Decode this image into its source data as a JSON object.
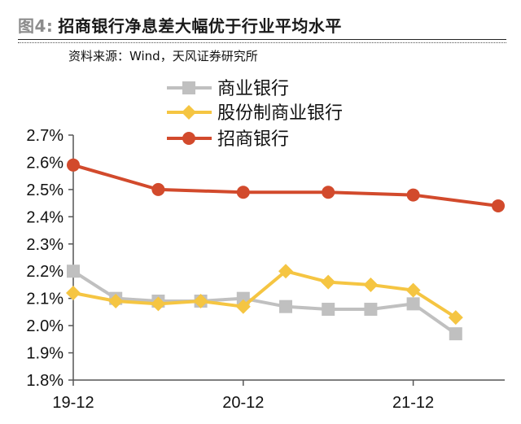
{
  "header": {
    "fig_label": "图4",
    "fig_sep": ":",
    "title": "招商银行净息差大幅优于行业平均水平",
    "source": "资料来源：Wind，天风证券研究所"
  },
  "chart_data": {
    "type": "line",
    "title": "招商银行净息差大幅优于行业平均水平",
    "xlabel": "",
    "ylabel": "",
    "ylim": [
      1.8,
      2.7
    ],
    "y_ticks": [
      "2.7%",
      "2.6%",
      "2.5%",
      "2.4%",
      "2.3%",
      "2.2%",
      "2.1%",
      "2.0%",
      "1.9%",
      "1.8%"
    ],
    "x_labels": [
      "19-12",
      "20-12",
      "21-12"
    ],
    "x_label_positions": [
      0,
      4,
      8
    ],
    "x_count": 11,
    "legend_position": "top-center",
    "grid": false,
    "series": [
      {
        "name": "商业银行",
        "color": "#c0c0c0",
        "marker": "square",
        "values": [
          2.2,
          2.1,
          2.09,
          2.09,
          2.1,
          2.07,
          2.06,
          2.06,
          2.08,
          1.97,
          null
        ]
      },
      {
        "name": "股份制商业银行",
        "color": "#f5c542",
        "marker": "diamond",
        "values": [
          2.12,
          2.09,
          2.08,
          2.09,
          2.07,
          2.2,
          2.16,
          2.15,
          2.13,
          2.03,
          null
        ]
      },
      {
        "name": "招商银行",
        "color": "#d24a2c",
        "marker": "circle",
        "values": [
          2.59,
          null,
          2.5,
          null,
          2.49,
          null,
          2.49,
          null,
          2.48,
          null,
          2.44
        ]
      }
    ]
  }
}
